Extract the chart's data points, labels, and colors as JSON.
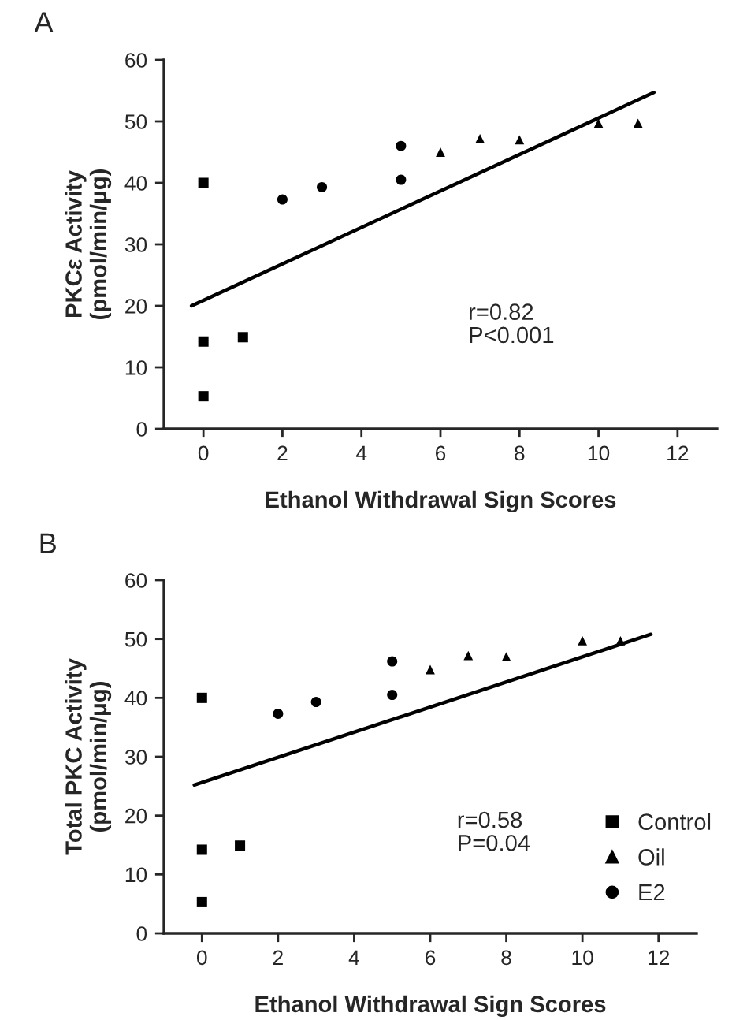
{
  "chart_data": [
    {
      "type": "scatter",
      "xlabel": "Ethanol Withdrawal Sign Scores",
      "ylabel": "PKCε Activity\n(pmol/min/μg)",
      "xlim": [
        -1,
        13
      ],
      "ylim": [
        0,
        60
      ],
      "xticks": [
        0,
        2,
        4,
        6,
        8,
        10,
        12
      ],
      "yticks": [
        0,
        10,
        20,
        30,
        40,
        50,
        60
      ],
      "grid": false,
      "legend": false,
      "annotations": [
        "A",
        "r=0.82\nP<0.001"
      ],
      "series": [
        {
          "color": "#000000",
          "marker": "square",
          "x": [
            0,
            0,
            0,
            1
          ],
          "values": [
            40,
            14.2,
            5.3,
            14.9
          ]
        },
        {
          "color": "#000000",
          "marker": "triangle",
          "x": [
            6,
            7,
            8,
            10,
            11
          ],
          "values": [
            45,
            47.2,
            47,
            49.7,
            49.7
          ]
        },
        {
          "color": "#000000",
          "marker": "circle",
          "x": [
            2,
            3,
            5,
            5
          ],
          "values": [
            37.3,
            39.3,
            46,
            40.5
          ]
        },
        {
          "type": "line",
          "color": "#000000",
          "marker": "none",
          "line_style": "solid",
          "x": [
            -0.3,
            11.4
          ],
          "values": [
            20,
            54.7
          ]
        }
      ]
    },
    {
      "type": "scatter",
      "xlabel": "Ethanol Withdrawal Sign Scores",
      "ylabel": "Total PKC Activity\n(pmol/min/μg)",
      "xlim": [
        -1,
        13
      ],
      "ylim": [
        0,
        60
      ],
      "xticks": [
        0,
        2,
        4,
        6,
        8,
        10,
        12
      ],
      "yticks": [
        0,
        10,
        20,
        30,
        40,
        50,
        60
      ],
      "grid": false,
      "legend": "right",
      "annotations": [
        "B",
        "r=0.58\nP=0.04"
      ],
      "series": [
        {
          "name": "Control",
          "color": "#000000",
          "marker": "square",
          "x": [
            0,
            0,
            0,
            1
          ],
          "values": [
            40,
            14.2,
            5.3,
            14.9
          ]
        },
        {
          "name": "Oil",
          "color": "#000000",
          "marker": "triangle",
          "x": [
            6,
            7,
            8,
            10,
            11
          ],
          "values": [
            44.8,
            47.2,
            47,
            49.7,
            49.7
          ]
        },
        {
          "name": "E2",
          "color": "#000000",
          "marker": "circle",
          "x": [
            2,
            3,
            5,
            5
          ],
          "values": [
            37.3,
            39.3,
            46.2,
            40.5
          ]
        },
        {
          "type": "line",
          "color": "#000000",
          "marker": "none",
          "line_style": "solid",
          "x": [
            -0.2,
            11.8
          ],
          "values": [
            25.2,
            50.8
          ]
        }
      ]
    }
  ]
}
